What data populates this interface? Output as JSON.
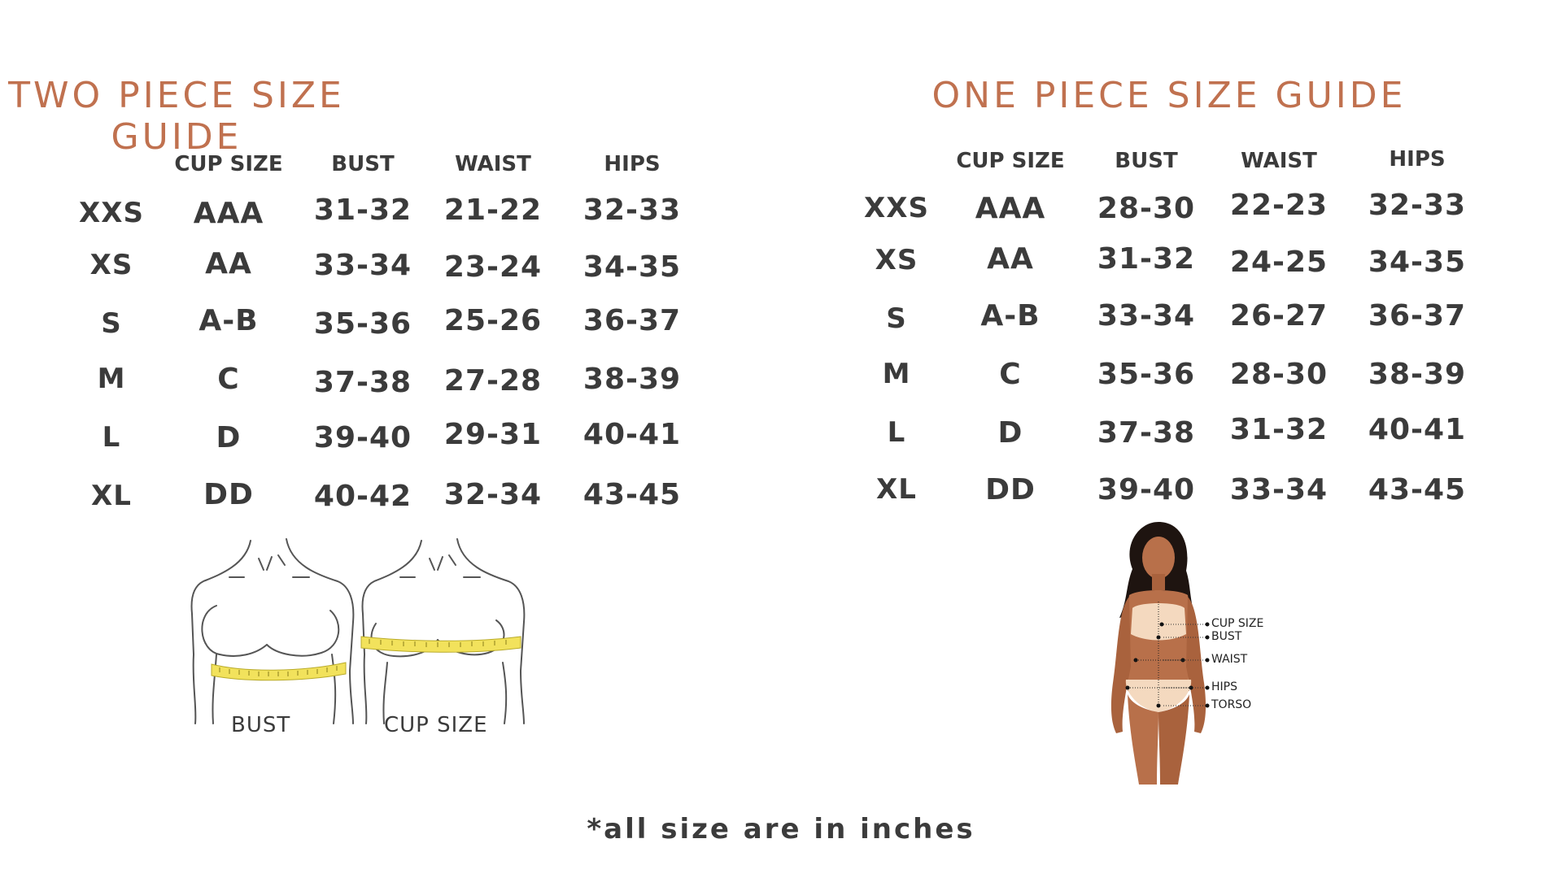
{
  "guides": [
    {
      "title": "TWO PIECE SIZE GUIDE",
      "headers": [
        "CUP SIZE",
        "BUST",
        "WAIST",
        "HIPS"
      ],
      "rows": [
        {
          "size": "XXS",
          "cup": "AAA",
          "bust": "31-32",
          "waist": "21-22",
          "hips": "32-33"
        },
        {
          "size": "XS",
          "cup": "AA",
          "bust": "33-34",
          "waist": "23-24",
          "hips": "34-35"
        },
        {
          "size": "S",
          "cup": "A-B",
          "bust": "35-36",
          "waist": "25-26",
          "hips": "36-37"
        },
        {
          "size": "M",
          "cup": "C",
          "bust": "37-38",
          "waist": "27-28",
          "hips": "38-39"
        },
        {
          "size": "L",
          "cup": "D",
          "bust": "39-40",
          "waist": "29-31",
          "hips": "40-41"
        },
        {
          "size": "XL",
          "cup": "DD",
          "bust": "40-42",
          "waist": "32-34",
          "hips": "43-45"
        }
      ],
      "illustration_labels": [
        "BUST",
        "CUP SIZE"
      ]
    },
    {
      "title": "ONE PIECE SIZE GUIDE",
      "headers": [
        "CUP SIZE",
        "BUST",
        "WAIST",
        "HIPS"
      ],
      "rows": [
        {
          "size": "XXS",
          "cup": "AAA",
          "bust": "28-30",
          "waist": "22-23",
          "hips": "32-33"
        },
        {
          "size": "XS",
          "cup": "AA",
          "bust": "31-32",
          "waist": "24-25",
          "hips": "34-35"
        },
        {
          "size": "S",
          "cup": "A-B",
          "bust": "33-34",
          "waist": "26-27",
          "hips": "36-37"
        },
        {
          "size": "M",
          "cup": "C",
          "bust": "35-36",
          "waist": "28-30",
          "hips": "38-39"
        },
        {
          "size": "L",
          "cup": "D",
          "bust": "37-38",
          "waist": "31-32",
          "hips": "40-41"
        },
        {
          "size": "XL",
          "cup": "DD",
          "bust": "39-40",
          "waist": "33-34",
          "hips": "43-45"
        }
      ],
      "figure_labels": [
        "CUP SIZE",
        "BUST",
        "WAIST",
        "HIPS",
        "TORSO"
      ]
    }
  ],
  "footnote": "*all size are in inches",
  "colors": {
    "title": "#c0714f",
    "text": "#3b3b3b",
    "tape": "#f2e25c",
    "skin": "#b8704a",
    "garment": "#f4d9bf",
    "hair": "#1e1410"
  }
}
